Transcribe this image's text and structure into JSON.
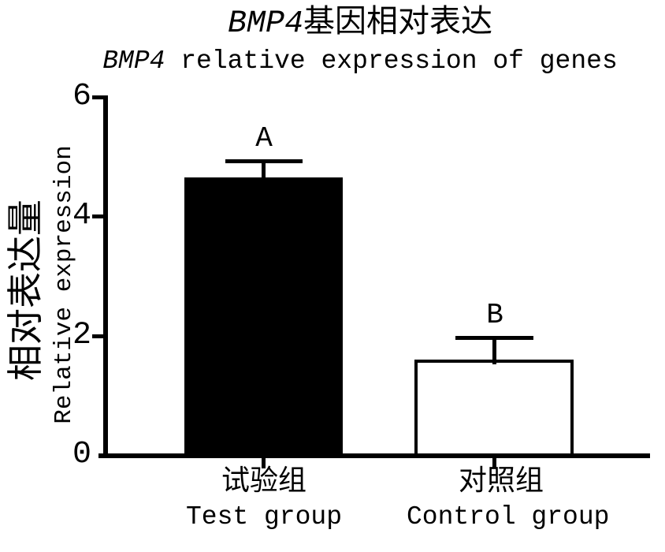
{
  "figure": {
    "background": "#ffffff",
    "ink": "#000000",
    "title": {
      "line1_italic": "BMP4",
      "line1_rest": "基因相对表达",
      "line2_italic": "BMP4",
      "line2_rest": " relative expression of genes"
    }
  },
  "chart_data": {
    "type": "bar",
    "title": "BMP4基因相对表达",
    "subtitle": "BMP4 relative expression of genes",
    "ylabel_zh": "相对表达量",
    "ylabel_en": "Relative expression",
    "xlabel": "",
    "ylim": [
      0,
      6
    ],
    "yticks": [
      6,
      4,
      2,
      0
    ],
    "grid": false,
    "legend_position": "none",
    "bars": [
      {
        "label_zh": "试验组",
        "label_en": "Test group",
        "value": 4.65,
        "error_upper": 0.3,
        "sig": "A",
        "fill": "#000000"
      },
      {
        "label_zh": "对照组",
        "label_en": "Control group",
        "value": 1.6,
        "error_upper": 0.4,
        "sig": "B",
        "fill": "#ffffff"
      }
    ]
  }
}
